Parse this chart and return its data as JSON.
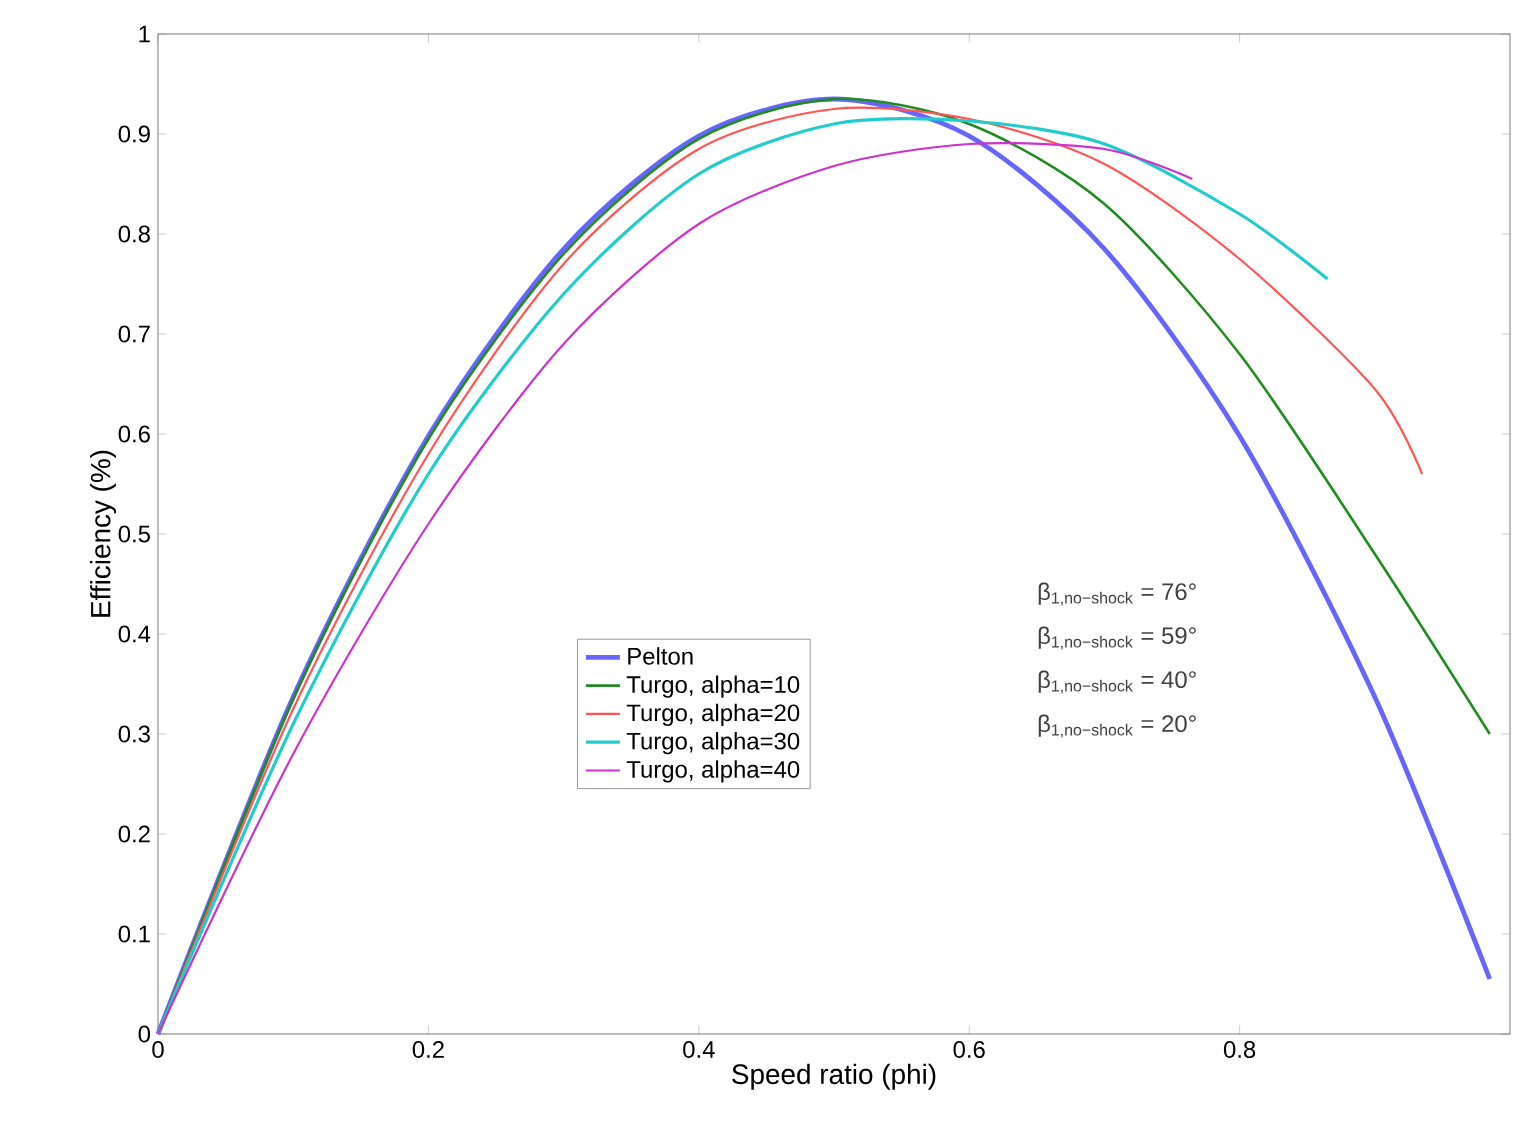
{
  "chart_data": {
    "type": "line",
    "xlabel": "Speed ratio (phi)",
    "ylabel": "Efficiency (%)",
    "xlim": [
      0,
      1
    ],
    "ylim": [
      0,
      1
    ],
    "xticks": [
      0,
      0.2,
      0.4,
      0.6,
      0.8
    ],
    "yticks": [
      0,
      0.1,
      0.2,
      0.3,
      0.4,
      0.5,
      0.6,
      0.7,
      0.8,
      0.9,
      1
    ],
    "legend": "center",
    "grid": false,
    "marker": "none",
    "line_style": "solid",
    "series": [
      {
        "name": "Pelton",
        "color": "#6666ff",
        "x": [
          0,
          0.1,
          0.2,
          0.3,
          0.4,
          0.5,
          0.6,
          0.7,
          0.8,
          0.9,
          0.985
        ],
        "values": [
          0,
          0.337,
          0.598,
          0.785,
          0.898,
          0.935,
          0.898,
          0.785,
          0.598,
          0.337,
          0.055
        ]
      },
      {
        "name": "Turgo, alpha=10",
        "color": "#228b22",
        "x": [
          0,
          0.1,
          0.2,
          0.3,
          0.4,
          0.5,
          0.6,
          0.7,
          0.8,
          0.9,
          0.985
        ],
        "values": [
          0,
          0.335,
          0.595,
          0.78,
          0.895,
          0.935,
          0.91,
          0.83,
          0.68,
          0.48,
          0.3
        ]
      },
      {
        "name": "Turgo, alpha=20",
        "color": "#ff5555",
        "x": [
          0,
          0.1,
          0.2,
          0.3,
          0.4,
          0.5,
          0.6,
          0.7,
          0.8,
          0.9,
          0.935
        ],
        "values": [
          0,
          0.325,
          0.58,
          0.77,
          0.885,
          0.925,
          0.915,
          0.87,
          0.775,
          0.645,
          0.56
        ]
      },
      {
        "name": "Turgo, alpha=30",
        "color": "#22cccc",
        "x": [
          0,
          0.1,
          0.2,
          0.3,
          0.4,
          0.5,
          0.6,
          0.7,
          0.8,
          0.865
        ],
        "values": [
          0,
          0.31,
          0.56,
          0.74,
          0.86,
          0.91,
          0.913,
          0.89,
          0.82,
          0.755
        ]
      },
      {
        "name": "Turgo, alpha=40",
        "color": "#cc33cc",
        "x": [
          0,
          0.1,
          0.2,
          0.3,
          0.4,
          0.5,
          0.6,
          0.7,
          0.765
        ],
        "values": [
          0,
          0.28,
          0.51,
          0.69,
          0.81,
          0.868,
          0.89,
          0.885,
          0.855
        ]
      }
    ],
    "annotations": [
      "β$_{1,no−shock}$ = 76°",
      "β$_{1,no−shock}$ = 59°",
      "β$_{1,no−shock}$ = 40°",
      "β$_{1,no−shock}$ = 20°"
    ]
  }
}
